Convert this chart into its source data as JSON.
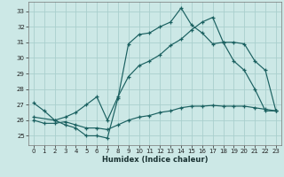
{
  "xlabel": "Humidex (Indice chaleur)",
  "bg_color": "#cce8e6",
  "grid_color": "#aacfcd",
  "line_color": "#1a6060",
  "xlim": [
    -0.5,
    23.5
  ],
  "ylim": [
    24.4,
    33.6
  ],
  "yticks": [
    25,
    26,
    27,
    28,
    29,
    30,
    31,
    32,
    33
  ],
  "xticks": [
    0,
    1,
    2,
    3,
    4,
    5,
    6,
    7,
    8,
    9,
    10,
    11,
    12,
    13,
    14,
    15,
    16,
    17,
    18,
    19,
    20,
    21,
    22,
    23
  ],
  "line1_x": [
    0,
    1,
    2,
    3,
    4,
    5,
    6,
    7,
    8,
    9,
    10,
    11,
    12,
    13,
    14,
    15,
    16,
    17,
    18,
    19,
    20,
    21,
    22,
    23
  ],
  "line1_y": [
    27.1,
    26.6,
    26.0,
    25.7,
    25.5,
    25.0,
    25.0,
    24.85,
    27.4,
    30.9,
    31.5,
    31.6,
    32.0,
    32.3,
    33.2,
    32.1,
    31.6,
    30.9,
    31.0,
    29.8,
    29.2,
    28.0,
    26.6,
    26.6
  ],
  "line2_x": [
    0,
    2,
    3,
    4,
    5,
    6,
    7,
    8,
    9,
    10,
    11,
    12,
    13,
    14,
    15,
    16,
    17,
    18,
    19,
    20,
    21,
    22,
    23
  ],
  "line2_y": [
    26.2,
    26.0,
    26.2,
    26.5,
    27.0,
    27.5,
    26.0,
    27.5,
    28.8,
    29.5,
    29.8,
    30.2,
    30.8,
    31.2,
    31.8,
    32.3,
    32.6,
    31.0,
    31.0,
    30.9,
    29.8,
    29.2,
    26.6
  ],
  "line3_x": [
    0,
    1,
    2,
    3,
    4,
    5,
    6,
    7,
    8,
    9,
    10,
    11,
    12,
    13,
    14,
    15,
    16,
    17,
    18,
    19,
    20,
    21,
    22,
    23
  ],
  "line3_y": [
    26.0,
    25.8,
    25.8,
    25.9,
    25.7,
    25.5,
    25.5,
    25.4,
    25.7,
    26.0,
    26.2,
    26.3,
    26.5,
    26.6,
    26.8,
    26.9,
    26.9,
    26.95,
    26.9,
    26.9,
    26.9,
    26.8,
    26.7,
    26.6
  ]
}
